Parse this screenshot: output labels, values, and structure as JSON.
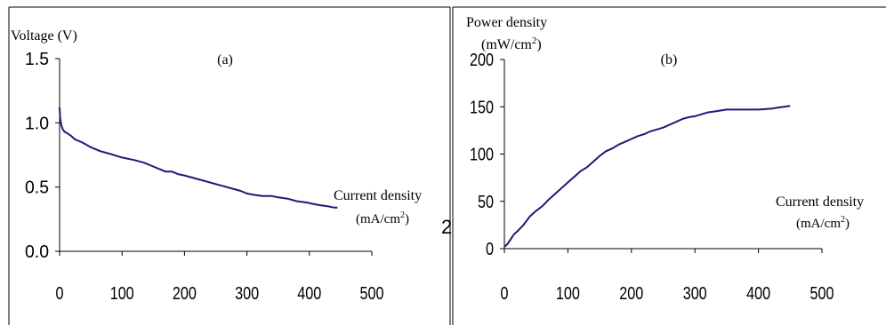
{
  "chart_data": [
    {
      "type": "line",
      "panel_label": "(a)",
      "ylabel": "Voltage  (V)",
      "xlabel_line1": "Current density",
      "xlabel_line2": "(mA/cm",
      "xlabel_sup": "2",
      "xlabel_line2_end": ")",
      "xlim": [
        0,
        500
      ],
      "ylim": [
        0.0,
        1.5
      ],
      "xticks": [
        "0",
        "100",
        "200",
        "300",
        "400",
        "500"
      ],
      "yticks": [
        "0.0",
        "0.5",
        "1.0",
        "1.5"
      ],
      "x": [
        0,
        1,
        3,
        5,
        8,
        12,
        18,
        25,
        35,
        50,
        65,
        80,
        100,
        120,
        135,
        150,
        160,
        170,
        180,
        190,
        200,
        215,
        230,
        245,
        260,
        275,
        290,
        300,
        310,
        325,
        340,
        350,
        365,
        380,
        395,
        405,
        415,
        430,
        440,
        445
      ],
      "y": [
        1.12,
        1.03,
        0.98,
        0.95,
        0.93,
        0.92,
        0.9,
        0.87,
        0.85,
        0.81,
        0.78,
        0.76,
        0.73,
        0.71,
        0.69,
        0.66,
        0.64,
        0.62,
        0.62,
        0.6,
        0.59,
        0.57,
        0.55,
        0.53,
        0.51,
        0.49,
        0.47,
        0.45,
        0.44,
        0.43,
        0.43,
        0.42,
        0.41,
        0.39,
        0.38,
        0.37,
        0.36,
        0.35,
        0.34,
        0.34
      ],
      "line_color": "#1a1a78"
    },
    {
      "type": "line",
      "panel_label": "(b)",
      "ylabel_line1": "Power  density",
      "ylabel_line2": "(mW/cm",
      "ylabel_sup": "2",
      "ylabel_line2_end": ")",
      "xlabel_line1": "Current density",
      "xlabel_line2": "(mA/cm",
      "xlabel_sup": "2",
      "xlabel_line2_end": ")",
      "xlim": [
        0,
        500
      ],
      "ylim": [
        0,
        200
      ],
      "xticks": [
        "0",
        "100",
        "200",
        "300",
        "400",
        "500"
      ],
      "yticks": [
        "0",
        "50",
        "100",
        "150",
        "200"
      ],
      "x": [
        0,
        5,
        10,
        15,
        20,
        30,
        40,
        50,
        60,
        70,
        80,
        90,
        100,
        110,
        120,
        130,
        140,
        150,
        160,
        170,
        180,
        190,
        200,
        210,
        220,
        230,
        240,
        250,
        260,
        270,
        280,
        290,
        300,
        310,
        320,
        330,
        340,
        350,
        360,
        380,
        400,
        420,
        430,
        440,
        450
      ],
      "y": [
        2,
        5,
        10,
        15,
        18,
        25,
        34,
        40,
        45,
        52,
        58,
        64,
        70,
        76,
        82,
        86,
        92,
        98,
        103,
        106,
        110,
        113,
        116,
        119,
        121,
        124,
        126,
        128,
        131,
        134,
        137,
        139,
        140,
        142,
        144,
        145,
        146,
        147,
        147,
        147,
        147,
        148,
        149,
        150,
        151
      ],
      "line_color": "#1a1a78"
    }
  ],
  "stray_glyph": "2"
}
